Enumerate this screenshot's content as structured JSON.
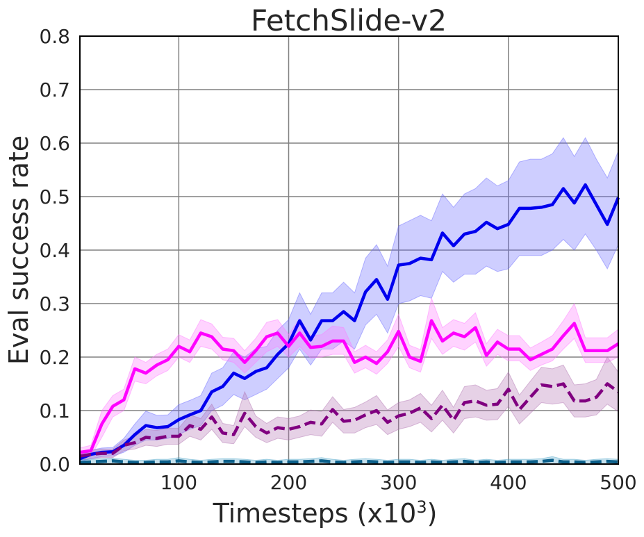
{
  "chart_data": {
    "type": "line",
    "title": "FetchSlide-v2",
    "xlabel": {
      "main": "Timesteps (x10",
      "sup": "3",
      "close": ")"
    },
    "ylabel": "Eval success rate",
    "xlim": [
      10,
      500
    ],
    "ylim": [
      0,
      0.8
    ],
    "x_ticks": [
      100,
      200,
      300,
      400,
      500
    ],
    "x_tick_labels": [
      "100",
      "200",
      "300",
      "400",
      "500"
    ],
    "y_ticks": [
      0.0,
      0.1,
      0.2,
      0.3,
      0.4,
      0.5,
      0.6,
      0.7,
      0.8
    ],
    "y_tick_labels": [
      "0.0",
      "0.1",
      "0.2",
      "0.3",
      "0.4",
      "0.5",
      "0.6",
      "0.7",
      "0.8"
    ],
    "grid": true,
    "x": [
      10,
      20,
      30,
      40,
      50,
      60,
      70,
      80,
      90,
      100,
      110,
      120,
      130,
      140,
      150,
      160,
      170,
      180,
      190,
      200,
      210,
      220,
      230,
      240,
      250,
      260,
      270,
      280,
      290,
      300,
      310,
      320,
      330,
      340,
      350,
      360,
      370,
      380,
      390,
      400,
      410,
      420,
      430,
      440,
      450,
      460,
      470,
      480,
      490,
      500
    ],
    "series": [
      {
        "color": "#0000ee",
        "band_color": "#6666ff",
        "dash": "solid",
        "values": [
          0.01,
          0.018,
          0.022,
          0.023,
          0.035,
          0.055,
          0.072,
          0.068,
          0.07,
          0.083,
          0.092,
          0.1,
          0.135,
          0.145,
          0.17,
          0.16,
          0.173,
          0.18,
          0.205,
          0.225,
          0.268,
          0.232,
          0.268,
          0.268,
          0.285,
          0.268,
          0.322,
          0.345,
          0.308,
          0.372,
          0.375,
          0.385,
          0.382,
          0.432,
          0.408,
          0.43,
          0.435,
          0.452,
          0.44,
          0.448,
          0.478,
          0.478,
          0.48,
          0.485,
          0.515,
          0.488,
          0.522,
          0.485,
          0.448,
          0.498
        ],
        "lower": [
          0.005,
          0.01,
          0.014,
          0.015,
          0.022,
          0.035,
          0.045,
          0.045,
          0.048,
          0.055,
          0.065,
          0.072,
          0.1,
          0.11,
          0.13,
          0.12,
          0.13,
          0.14,
          0.16,
          0.18,
          0.215,
          0.185,
          0.215,
          0.215,
          0.23,
          0.215,
          0.26,
          0.28,
          0.245,
          0.3,
          0.305,
          0.315,
          0.31,
          0.36,
          0.34,
          0.355,
          0.355,
          0.37,
          0.36,
          0.365,
          0.39,
          0.39,
          0.39,
          0.4,
          0.42,
          0.4,
          0.43,
          0.4,
          0.365,
          0.41
        ],
        "upper": [
          0.015,
          0.026,
          0.03,
          0.031,
          0.048,
          0.075,
          0.099,
          0.091,
          0.092,
          0.111,
          0.119,
          0.128,
          0.17,
          0.18,
          0.21,
          0.2,
          0.216,
          0.22,
          0.25,
          0.27,
          0.32,
          0.28,
          0.32,
          0.32,
          0.34,
          0.32,
          0.385,
          0.41,
          0.37,
          0.445,
          0.455,
          0.465,
          0.455,
          0.505,
          0.48,
          0.505,
          0.515,
          0.535,
          0.52,
          0.53,
          0.565,
          0.57,
          0.57,
          0.58,
          0.61,
          0.575,
          0.61,
          0.57,
          0.535,
          0.585
        ]
      },
      {
        "color": "#ff00ff",
        "band_color": "#ff77ff",
        "dash": "solid",
        "values": [
          0.022,
          0.025,
          0.075,
          0.108,
          0.12,
          0.178,
          0.17,
          0.185,
          0.195,
          0.22,
          0.21,
          0.245,
          0.238,
          0.215,
          0.212,
          0.19,
          0.212,
          0.238,
          0.245,
          0.22,
          0.245,
          0.218,
          0.22,
          0.23,
          0.23,
          0.19,
          0.2,
          0.188,
          0.21,
          0.248,
          0.2,
          0.192,
          0.268,
          0.23,
          0.245,
          0.238,
          0.255,
          0.203,
          0.228,
          0.215,
          0.215,
          0.195,
          0.205,
          0.215,
          0.24,
          0.263,
          0.212,
          0.212,
          0.212,
          0.225
        ],
        "lower": [
          0.015,
          0.015,
          0.05,
          0.088,
          0.1,
          0.155,
          0.15,
          0.165,
          0.175,
          0.2,
          0.19,
          0.22,
          0.215,
          0.195,
          0.19,
          0.17,
          0.19,
          0.21,
          0.22,
          0.2,
          0.22,
          0.198,
          0.2,
          0.205,
          0.205,
          0.17,
          0.18,
          0.168,
          0.188,
          0.22,
          0.18,
          0.172,
          0.235,
          0.205,
          0.22,
          0.213,
          0.228,
          0.183,
          0.205,
          0.193,
          0.193,
          0.175,
          0.185,
          0.193,
          0.215,
          0.235,
          0.19,
          0.19,
          0.19,
          0.2
        ],
        "upper": [
          0.03,
          0.035,
          0.1,
          0.128,
          0.14,
          0.2,
          0.19,
          0.205,
          0.215,
          0.242,
          0.232,
          0.27,
          0.262,
          0.237,
          0.235,
          0.212,
          0.235,
          0.265,
          0.27,
          0.242,
          0.272,
          0.24,
          0.242,
          0.258,
          0.255,
          0.21,
          0.222,
          0.21,
          0.232,
          0.28,
          0.222,
          0.214,
          0.31,
          0.255,
          0.27,
          0.263,
          0.283,
          0.225,
          0.252,
          0.24,
          0.24,
          0.217,
          0.228,
          0.24,
          0.268,
          0.3,
          0.236,
          0.236,
          0.236,
          0.252
        ]
      },
      {
        "color": "#800080",
        "band_color": "#b070b0",
        "dash": "dashed",
        "values": [
          0.015,
          0.018,
          0.02,
          0.02,
          0.035,
          0.04,
          0.05,
          0.048,
          0.052,
          0.052,
          0.072,
          0.065,
          0.088,
          0.058,
          0.055,
          0.095,
          0.07,
          0.058,
          0.068,
          0.065,
          0.07,
          0.078,
          0.075,
          0.102,
          0.08,
          0.082,
          0.092,
          0.1,
          0.078,
          0.09,
          0.095,
          0.105,
          0.085,
          0.11,
          0.082,
          0.115,
          0.118,
          0.11,
          0.112,
          0.14,
          0.102,
          0.125,
          0.148,
          0.145,
          0.15,
          0.118,
          0.118,
          0.125,
          0.15,
          0.135
        ],
        "lower": [
          0.008,
          0.01,
          0.012,
          0.012,
          0.025,
          0.028,
          0.035,
          0.033,
          0.037,
          0.037,
          0.052,
          0.045,
          0.065,
          0.04,
          0.038,
          0.07,
          0.05,
          0.04,
          0.048,
          0.045,
          0.05,
          0.055,
          0.052,
          0.078,
          0.058,
          0.058,
          0.068,
          0.074,
          0.055,
          0.065,
          0.07,
          0.078,
          0.06,
          0.082,
          0.058,
          0.085,
          0.088,
          0.082,
          0.083,
          0.108,
          0.075,
          0.095,
          0.115,
          0.112,
          0.115,
          0.088,
          0.088,
          0.092,
          0.112,
          0.098
        ],
        "upper": [
          0.022,
          0.026,
          0.028,
          0.028,
          0.045,
          0.052,
          0.065,
          0.063,
          0.067,
          0.067,
          0.092,
          0.085,
          0.112,
          0.076,
          0.072,
          0.135,
          0.09,
          0.076,
          0.088,
          0.085,
          0.09,
          0.101,
          0.098,
          0.126,
          0.102,
          0.106,
          0.116,
          0.128,
          0.101,
          0.115,
          0.12,
          0.132,
          0.11,
          0.138,
          0.106,
          0.145,
          0.148,
          0.138,
          0.141,
          0.172,
          0.129,
          0.155,
          0.181,
          0.178,
          0.185,
          0.148,
          0.15,
          0.158,
          0.2,
          0.172
        ]
      },
      {
        "color": "#0b5f8a",
        "band_color": "#4aa3c8",
        "dash": "dashed",
        "values": [
          0.003,
          0.004,
          0.005,
          0.006,
          0.004,
          0.003,
          0.003,
          0.004,
          0.004,
          0.006,
          0.004,
          0.003,
          0.004,
          0.005,
          0.005,
          0.004,
          0.003,
          0.004,
          0.003,
          0.004,
          0.004,
          0.005,
          0.006,
          0.004,
          0.003,
          0.004,
          0.005,
          0.004,
          0.003,
          0.004,
          0.004,
          0.003,
          0.004,
          0.003,
          0.004,
          0.005,
          0.003,
          0.004,
          0.003,
          0.004,
          0.004,
          0.004,
          0.005,
          0.007,
          0.004,
          0.004,
          0.003,
          0.004,
          0.005,
          0.004
        ],
        "lower": [
          0.0,
          0.0,
          0.0,
          0.0,
          0.0,
          0.0,
          0.0,
          0.0,
          0.0,
          0.0,
          0.0,
          0.0,
          0.0,
          0.0,
          0.0,
          0.0,
          0.0,
          0.0,
          0.0,
          0.0,
          0.0,
          0.0,
          0.0,
          0.0,
          0.0,
          0.0,
          0.0,
          0.0,
          0.0,
          0.0,
          0.0,
          0.0,
          0.0,
          0.0,
          0.0,
          0.0,
          0.0,
          0.0,
          0.0,
          0.0,
          0.0,
          0.0,
          0.0,
          0.0,
          0.0,
          0.0,
          0.0,
          0.0,
          0.0,
          0.0
        ],
        "upper": [
          0.008,
          0.009,
          0.01,
          0.011,
          0.009,
          0.007,
          0.007,
          0.009,
          0.009,
          0.012,
          0.009,
          0.007,
          0.009,
          0.01,
          0.01,
          0.009,
          0.007,
          0.009,
          0.007,
          0.009,
          0.009,
          0.01,
          0.012,
          0.009,
          0.007,
          0.009,
          0.01,
          0.009,
          0.007,
          0.009,
          0.009,
          0.007,
          0.009,
          0.007,
          0.009,
          0.01,
          0.007,
          0.009,
          0.007,
          0.009,
          0.009,
          0.009,
          0.01,
          0.014,
          0.009,
          0.009,
          0.007,
          0.009,
          0.01,
          0.009
        ]
      }
    ]
  }
}
